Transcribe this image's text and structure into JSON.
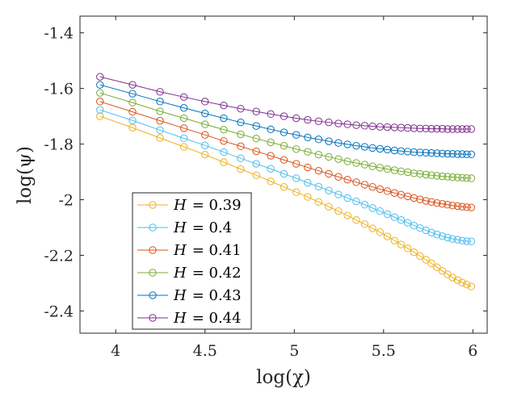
{
  "chart_data": {
    "type": "line",
    "title": "",
    "xlabel": "log(χ)",
    "ylabel": "log(ψ)",
    "xlim": [
      3.8,
      6.08
    ],
    "ylim": [
      -2.48,
      -1.34
    ],
    "xticks": [
      4,
      4.5,
      5,
      5.5,
      6
    ],
    "xtick_labels": [
      "4",
      "4.5",
      "5",
      "5.5",
      "6"
    ],
    "yticks": [
      -1.4,
      -1.6,
      -1.8,
      -2,
      -2.2,
      -2.4
    ],
    "ytick_labels": [
      "-1.4",
      "-1.6",
      "-1.8",
      "-2",
      "-2.2",
      "-2.4"
    ],
    "grid": false,
    "legend_position": "bottom-left",
    "marker": "open-circle",
    "x": [
      3.912,
      4.094,
      4.248,
      4.382,
      4.5,
      4.605,
      4.7,
      4.787,
      4.868,
      4.942,
      5.011,
      5.075,
      5.136,
      5.193,
      5.247,
      5.298,
      5.347,
      5.394,
      5.438,
      5.48,
      5.521,
      5.561,
      5.598,
      5.635,
      5.67,
      5.704,
      5.737,
      5.768,
      5.799,
      5.829,
      5.858,
      5.886,
      5.914,
      5.94,
      5.966,
      5.991
    ],
    "series": [
      {
        "name": "H = 0.39",
        "legend_var": "H",
        "legend_value": "= 0.39",
        "color": "#EDB120",
        "values": [
          -1.7,
          -1.741,
          -1.778,
          -1.81,
          -1.838,
          -1.865,
          -1.89,
          -1.912,
          -1.934,
          -1.954,
          -1.973,
          -1.99,
          -2.008,
          -2.025,
          -2.041,
          -2.057,
          -2.073,
          -2.088,
          -2.103,
          -2.117,
          -2.132,
          -2.147,
          -2.161,
          -2.175,
          -2.189,
          -2.203,
          -2.216,
          -2.229,
          -2.243,
          -2.256,
          -2.268,
          -2.28,
          -2.289,
          -2.298,
          -2.305,
          -2.312
        ]
      },
      {
        "name": "H = 0.4",
        "legend_var": "H",
        "legend_value": "= 0.4",
        "color": "#4DBEEE",
        "values": [
          -1.677,
          -1.715,
          -1.75,
          -1.779,
          -1.805,
          -1.829,
          -1.851,
          -1.871,
          -1.889,
          -1.907,
          -1.923,
          -1.939,
          -1.953,
          -1.967,
          -1.981,
          -1.994,
          -2.006,
          -2.018,
          -2.03,
          -2.041,
          -2.052,
          -2.063,
          -2.073,
          -2.083,
          -2.093,
          -2.102,
          -2.11,
          -2.118,
          -2.125,
          -2.131,
          -2.136,
          -2.141,
          -2.144,
          -2.147,
          -2.149,
          -2.15
        ]
      },
      {
        "name": "H = 0.41",
        "legend_var": "H",
        "legend_value": "= 0.41",
        "color": "#D95319",
        "values": [
          -1.647,
          -1.684,
          -1.716,
          -1.743,
          -1.767,
          -1.789,
          -1.808,
          -1.826,
          -1.842,
          -1.857,
          -1.871,
          -1.884,
          -1.896,
          -1.907,
          -1.918,
          -1.928,
          -1.937,
          -1.946,
          -1.954,
          -1.962,
          -1.969,
          -1.976,
          -1.982,
          -1.988,
          -1.994,
          -1.999,
          -2.004,
          -2.008,
          -2.012,
          -2.015,
          -2.018,
          -2.021,
          -2.023,
          -2.025,
          -2.027,
          -2.028
        ]
      },
      {
        "name": "H = 0.42",
        "legend_var": "H",
        "legend_value": "= 0.42",
        "color": "#77AC30",
        "values": [
          -1.616,
          -1.651,
          -1.682,
          -1.707,
          -1.729,
          -1.748,
          -1.765,
          -1.78,
          -1.794,
          -1.806,
          -1.818,
          -1.828,
          -1.838,
          -1.846,
          -1.854,
          -1.862,
          -1.868,
          -1.874,
          -1.88,
          -1.885,
          -1.89,
          -1.894,
          -1.898,
          -1.901,
          -1.905,
          -1.907,
          -1.91,
          -1.912,
          -1.914,
          -1.916,
          -1.917,
          -1.919,
          -1.92,
          -1.921,
          -1.922,
          -1.923
        ]
      },
      {
        "name": "H = 0.43",
        "legend_var": "H",
        "legend_value": "= 0.43",
        "color": "#0072BD",
        "values": [
          -1.587,
          -1.619,
          -1.647,
          -1.67,
          -1.69,
          -1.707,
          -1.722,
          -1.735,
          -1.747,
          -1.758,
          -1.767,
          -1.776,
          -1.783,
          -1.79,
          -1.796,
          -1.801,
          -1.806,
          -1.81,
          -1.814,
          -1.817,
          -1.82,
          -1.823,
          -1.825,
          -1.827,
          -1.829,
          -1.83,
          -1.831,
          -1.832,
          -1.833,
          -1.834,
          -1.835,
          -1.835,
          -1.836,
          -1.836,
          -1.837,
          -1.837
        ]
      },
      {
        "name": "H = 0.44",
        "legend_var": "H",
        "legend_value": "= 0.44",
        "color": "#7E2F8E",
        "values": [
          -1.558,
          -1.587,
          -1.612,
          -1.631,
          -1.647,
          -1.661,
          -1.673,
          -1.683,
          -1.692,
          -1.7,
          -1.707,
          -1.713,
          -1.718,
          -1.722,
          -1.726,
          -1.729,
          -1.732,
          -1.734,
          -1.736,
          -1.738,
          -1.739,
          -1.74,
          -1.741,
          -1.742,
          -1.743,
          -1.744,
          -1.744,
          -1.745,
          -1.745,
          -1.745,
          -1.746,
          -1.746,
          -1.746,
          -1.746,
          -1.746,
          -1.746
        ]
      }
    ]
  }
}
